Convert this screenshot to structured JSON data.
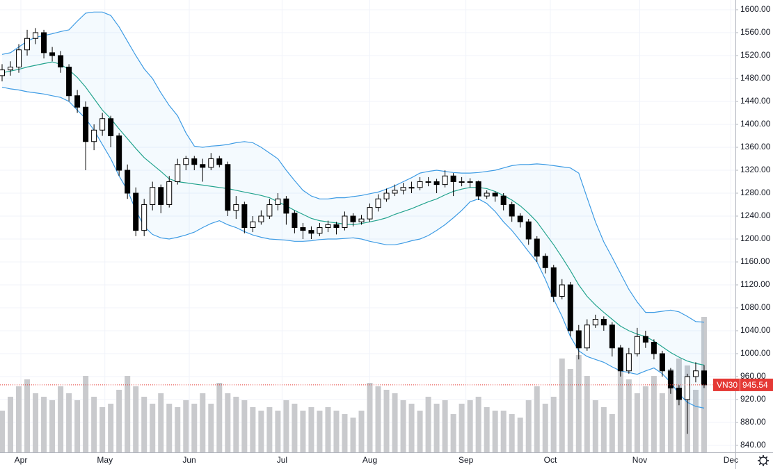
{
  "chart_data": {
    "type": "candlestick",
    "symbol": "VN30",
    "last_price": 945.54,
    "open": [
      1485,
      1495,
      1500,
      1530,
      1550,
      1560,
      1525,
      1520,
      1500,
      1450,
      1430,
      1370,
      1390,
      1410,
      1380,
      1320,
      1280,
      1215,
      1260,
      1290,
      1260,
      1300,
      1330,
      1340,
      1330,
      1325,
      1340,
      1330,
      1250,
      1260,
      1220,
      1230,
      1240,
      1260,
      1270,
      1245,
      1220,
      1215,
      1210,
      1220,
      1225,
      1220,
      1240,
      1230,
      1235,
      1255,
      1270,
      1280,
      1285,
      1290,
      1290,
      1300,
      1300,
      1295,
      1310,
      1300,
      1300,
      1300,
      1275,
      1280,
      1275,
      1260,
      1240,
      1230,
      1200,
      1170,
      1150,
      1100,
      1120,
      1040,
      1010,
      1050,
      1060,
      1050,
      1010,
      970,
      1000,
      1030,
      1020,
      1000,
      970,
      940,
      920,
      960,
      970
    ],
    "high": [
      1505,
      1510,
      1540,
      1565,
      1568,
      1565,
      1535,
      1528,
      1505,
      1460,
      1440,
      1400,
      1420,
      1415,
      1385,
      1330,
      1290,
      1270,
      1300,
      1295,
      1310,
      1340,
      1345,
      1345,
      1340,
      1350,
      1345,
      1335,
      1275,
      1265,
      1240,
      1250,
      1270,
      1280,
      1275,
      1250,
      1228,
      1222,
      1228,
      1232,
      1230,
      1248,
      1245,
      1242,
      1262,
      1278,
      1288,
      1295,
      1298,
      1300,
      1308,
      1308,
      1305,
      1320,
      1315,
      1308,
      1306,
      1302,
      1285,
      1283,
      1280,
      1265,
      1245,
      1235,
      1205,
      1175,
      1155,
      1130,
      1125,
      1050,
      1060,
      1068,
      1065,
      1055,
      1015,
      1010,
      1045,
      1040,
      1025,
      1005,
      975,
      945,
      965,
      985,
      980
    ],
    "low": [
      1475,
      1485,
      1490,
      1520,
      1540,
      1515,
      1510,
      1490,
      1440,
      1420,
      1320,
      1355,
      1380,
      1360,
      1310,
      1270,
      1205,
      1205,
      1250,
      1245,
      1255,
      1295,
      1320,
      1320,
      1300,
      1320,
      1325,
      1240,
      1235,
      1210,
      1212,
      1225,
      1235,
      1250,
      1225,
      1210,
      1200,
      1200,
      1205,
      1212,
      1208,
      1215,
      1222,
      1225,
      1230,
      1248,
      1265,
      1275,
      1278,
      1280,
      1285,
      1292,
      1280,
      1290,
      1275,
      1292,
      1290,
      1268,
      1270,
      1265,
      1250,
      1230,
      1220,
      1190,
      1160,
      1140,
      1090,
      1095,
      1030,
      990,
      1005,
      1045,
      1040,
      995,
      960,
      965,
      995,
      1010,
      990,
      960,
      930,
      910,
      860,
      950,
      940
    ],
    "close": [
      1495,
      1500,
      1530,
      1550,
      1560,
      1525,
      1520,
      1500,
      1450,
      1430,
      1370,
      1390,
      1410,
      1380,
      1320,
      1280,
      1215,
      1260,
      1290,
      1260,
      1300,
      1330,
      1340,
      1330,
      1325,
      1340,
      1330,
      1250,
      1260,
      1220,
      1230,
      1240,
      1260,
      1270,
      1245,
      1220,
      1215,
      1210,
      1220,
      1225,
      1220,
      1240,
      1230,
      1235,
      1255,
      1270,
      1280,
      1285,
      1290,
      1290,
      1300,
      1300,
      1295,
      1310,
      1300,
      1300,
      1300,
      1275,
      1280,
      1275,
      1260,
      1240,
      1230,
      1200,
      1170,
      1150,
      1100,
      1120,
      1040,
      1010,
      1050,
      1060,
      1050,
      1010,
      970,
      1000,
      1030,
      1020,
      1000,
      970,
      940,
      920,
      960,
      970,
      945.54
    ],
    "volume": [
      60,
      80,
      95,
      105,
      85,
      80,
      75,
      95,
      85,
      75,
      110,
      80,
      65,
      70,
      90,
      110,
      95,
      80,
      70,
      85,
      70,
      65,
      75,
      70,
      85,
      70,
      100,
      85,
      80,
      75,
      65,
      60,
      65,
      60,
      75,
      70,
      60,
      65,
      60,
      65,
      60,
      55,
      50,
      60,
      100,
      95,
      90,
      85,
      75,
      70,
      60,
      80,
      70,
      75,
      55,
      70,
      75,
      80,
      65,
      60,
      60,
      55,
      50,
      75,
      95,
      70,
      80,
      135,
      120,
      140,
      110,
      75,
      65,
      55,
      125,
      105,
      85,
      95,
      110,
      85,
      120,
      135,
      125,
      90,
      195
    ],
    "bands": {
      "upper": [
        1522,
        1525,
        1535,
        1545,
        1552,
        1555,
        1558,
        1562,
        1565,
        1580,
        1594,
        1596,
        1596,
        1590,
        1570,
        1545,
        1520,
        1497,
        1480,
        1455,
        1433,
        1415,
        1385,
        1362,
        1360,
        1362,
        1363,
        1365,
        1368,
        1370,
        1368,
        1360,
        1350,
        1340,
        1320,
        1302,
        1285,
        1275,
        1270,
        1270,
        1272,
        1272,
        1274,
        1276,
        1279,
        1282,
        1287,
        1293,
        1300,
        1307,
        1315,
        1318,
        1320,
        1318,
        1316,
        1315,
        1315,
        1316,
        1318,
        1320,
        1324,
        1328,
        1330,
        1330,
        1331,
        1330,
        1328,
        1326,
        1324,
        1315,
        1272,
        1230,
        1195,
        1168,
        1140,
        1112,
        1090,
        1072,
        1072,
        1074,
        1076,
        1073,
        1065,
        1056,
        1055
      ],
      "middle": [
        1490,
        1493,
        1496,
        1500,
        1503,
        1506,
        1509,
        1505,
        1495,
        1482,
        1465,
        1445,
        1425,
        1410,
        1392,
        1375,
        1358,
        1342,
        1330,
        1318,
        1305,
        1300,
        1298,
        1296,
        1294,
        1292,
        1290,
        1288,
        1285,
        1282,
        1279,
        1276,
        1272,
        1265,
        1258,
        1250,
        1243,
        1236,
        1232,
        1230,
        1228,
        1226,
        1225,
        1227,
        1230,
        1233,
        1237,
        1243,
        1248,
        1253,
        1259,
        1265,
        1270,
        1277,
        1283,
        1287,
        1290,
        1290,
        1288,
        1283,
        1276,
        1268,
        1258,
        1245,
        1230,
        1210,
        1190,
        1168,
        1145,
        1120,
        1100,
        1085,
        1072,
        1060,
        1048,
        1040,
        1034,
        1030,
        1022,
        1012,
        1002,
        994,
        987,
        983,
        980
      ],
      "lower": [
        1465,
        1462,
        1460,
        1457,
        1455,
        1453,
        1450,
        1447,
        1440,
        1425,
        1410,
        1390,
        1365,
        1340,
        1310,
        1285,
        1250,
        1222,
        1208,
        1202,
        1200,
        1203,
        1207,
        1212,
        1220,
        1227,
        1232,
        1225,
        1220,
        1213,
        1207,
        1203,
        1200,
        1199,
        1198,
        1196,
        1196,
        1197,
        1199,
        1200,
        1200,
        1201,
        1202,
        1200,
        1196,
        1193,
        1190,
        1190,
        1193,
        1197,
        1200,
        1206,
        1215,
        1225,
        1237,
        1250,
        1265,
        1270,
        1262,
        1248,
        1230,
        1215,
        1197,
        1178,
        1160,
        1130,
        1095,
        1065,
        1030,
        1005,
        995,
        990,
        985,
        977,
        970,
        967,
        964,
        970,
        975,
        965,
        950,
        930,
        915,
        908,
        905
      ],
      "upper_color": "#3d9be4",
      "middle_color": "#22a38e",
      "fill_color": "#2196f3"
    },
    "up_color": "#ffffff",
    "down_color": "#000000",
    "wick_color": "#000000",
    "volume_color": "#c9cacd",
    "last_color": "#e53935",
    "ylim": [
      840,
      1600
    ],
    "vlim": [
      0,
      250
    ],
    "xlim": [
      -0.25,
      87.75
    ],
    "yticks": [
      {
        "value": 1600,
        "label": "1600.00"
      },
      {
        "value": 1560,
        "label": "1560.00"
      },
      {
        "value": 1520,
        "label": "1520.00"
      },
      {
        "value": 1480,
        "label": "1480.00"
      },
      {
        "value": 1440,
        "label": "1440.00"
      },
      {
        "value": 1400,
        "label": "1400.00"
      },
      {
        "value": 1360,
        "label": "1360.00"
      },
      {
        "value": 1320,
        "label": "1320.00"
      },
      {
        "value": 1280,
        "label": "1280.00"
      },
      {
        "value": 1240,
        "label": "1240.00"
      },
      {
        "value": 1200,
        "label": "1200.00"
      },
      {
        "value": 1160,
        "label": "1160.00"
      },
      {
        "value": 1120,
        "label": "1120.00"
      },
      {
        "value": 1080,
        "label": "1080.00"
      },
      {
        "value": 1040,
        "label": "1040.00"
      },
      {
        "value": 1000,
        "label": "1000.00"
      },
      {
        "value": 960,
        "label": "960.00"
      },
      {
        "value": 920,
        "label": "920.00"
      },
      {
        "value": 880,
        "label": "880.00"
      },
      {
        "value": 840,
        "label": "840.00"
      }
    ],
    "xticks": [
      {
        "value": 2.25,
        "label": "Apr"
      },
      {
        "value": 12.3,
        "label": "May"
      },
      {
        "value": 22.4,
        "label": "Jun"
      },
      {
        "value": 33.5,
        "label": "Jul"
      },
      {
        "value": 44,
        "label": "Aug"
      },
      {
        "value": 55.5,
        "label": "Sep"
      },
      {
        "value": 65.6,
        "label": "Oct"
      },
      {
        "value": 76.3,
        "label": "Nov"
      },
      {
        "value": 87.2,
        "label": "Dec"
      }
    ],
    "grid": true
  }
}
